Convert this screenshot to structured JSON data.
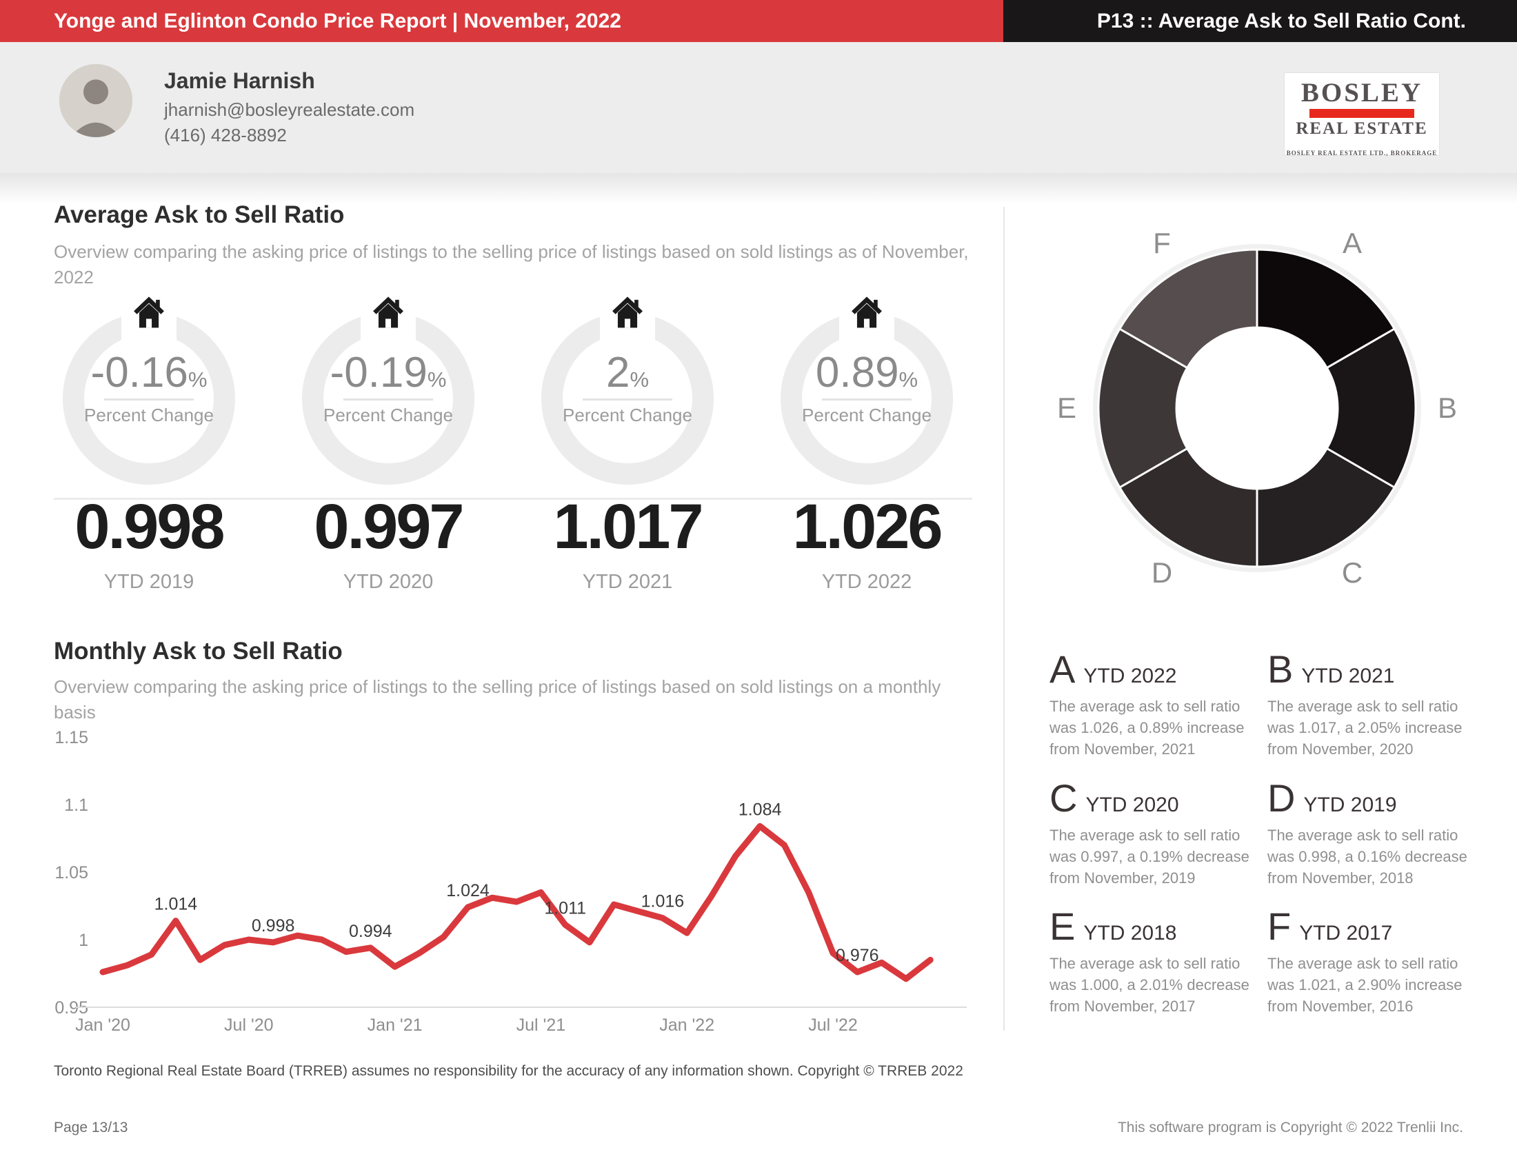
{
  "header": {
    "report_title": "Yonge and Eglinton Condo Price Report | November, 2022",
    "page_title": "P13 :: Average Ask to Sell Ratio Cont.",
    "accent_color": "#d9393d",
    "bar_color": "#191718"
  },
  "agent": {
    "name": "Jamie Harnish",
    "email": "jharnish@bosleyrealestate.com",
    "phone": "(416) 428-8892"
  },
  "brand": {
    "logo_line1": "BOSLEY",
    "logo_line2": "REAL ESTATE",
    "logo_line3": "BOSLEY REAL ESTATE LTD., BROKERAGE",
    "logo_bar_color": "#e8281e"
  },
  "ytd_section": {
    "title": "Average Ask to Sell Ratio",
    "subtitle": "Overview comparing the asking price of listings to the selling price of listings based on sold listings as of November, 2022",
    "percent_suffix": "%",
    "gauges": [
      {
        "percent_change": "-0.16",
        "caption": "Percent Change",
        "value": "0.998",
        "ytd_label": "YTD 2019"
      },
      {
        "percent_change": "-0.19",
        "caption": "Percent Change",
        "value": "0.997",
        "ytd_label": "YTD 2020"
      },
      {
        "percent_change": "2",
        "caption": "Percent Change",
        "value": "1.017",
        "ytd_label": "YTD 2021"
      },
      {
        "percent_change": "0.89",
        "caption": "Percent Change",
        "value": "1.026",
        "ytd_label": "YTD 2022"
      }
    ]
  },
  "monthly_section": {
    "title": "Monthly Ask to Sell Ratio",
    "subtitle": "Overview comparing the asking price of listings to the selling price of listings based on sold listings on a monthly basis"
  },
  "chart_data": {
    "type": "line",
    "title": "Monthly Ask to Sell Ratio",
    "xlabel": "",
    "ylabel": "",
    "ylim": [
      0.95,
      1.15
    ],
    "grid": false,
    "legend": "none",
    "line_color": "#d9393d",
    "axis_color": "#dcdcdc",
    "tick_color": "#8e8e8e",
    "label_color": "#3c3c3c",
    "x": [
      "Jan '20",
      "Feb '20",
      "Mar '20",
      "Apr '20",
      "May '20",
      "Jun '20",
      "Jul '20",
      "Aug '20",
      "Sep '20",
      "Oct '20",
      "Nov '20",
      "Dec '20",
      "Jan '21",
      "Feb '21",
      "Mar '21",
      "Apr '21",
      "May '21",
      "Jun '21",
      "Jul '21",
      "Aug '21",
      "Sep '21",
      "Oct '21",
      "Nov '21",
      "Dec '21",
      "Jan '22",
      "Feb '22",
      "Mar '22",
      "Apr '22",
      "May '22",
      "Jun '22",
      "Jul '22",
      "Aug '22",
      "Sep '22",
      "Oct '22",
      "Nov '22"
    ],
    "values": [
      0.976,
      0.981,
      0.989,
      1.014,
      0.985,
      0.996,
      1.0,
      0.998,
      1.003,
      1.0,
      0.991,
      0.994,
      0.98,
      0.99,
      1.002,
      1.024,
      1.031,
      1.028,
      1.035,
      1.011,
      0.998,
      1.026,
      1.021,
      1.016,
      1.005,
      1.032,
      1.062,
      1.084,
      1.07,
      1.035,
      0.99,
      0.976,
      0.983,
      0.971,
      0.985
    ],
    "labeled_points": [
      {
        "index": 3,
        "x": "Apr '20",
        "value": "1.014"
      },
      {
        "index": 7,
        "x": "Aug '20",
        "value": "0.998"
      },
      {
        "index": 11,
        "x": "Dec '20",
        "value": "0.994"
      },
      {
        "index": 15,
        "x": "Apr '21",
        "value": "1.024"
      },
      {
        "index": 19,
        "x": "Aug '21",
        "value": "1.011"
      },
      {
        "index": 23,
        "x": "Dec '21",
        "value": "1.016"
      },
      {
        "index": 27,
        "x": "Apr '22",
        "value": "1.084"
      },
      {
        "index": 31,
        "x": "Aug '22",
        "value": "0.976"
      }
    ],
    "y_ticks": [
      "1.15",
      "1.1",
      "1.05",
      "1",
      "0.95"
    ],
    "x_ticks": [
      "Jan '20",
      "Jul '20",
      "Jan '21",
      "Jul '21",
      "Jan '22",
      "Jul '22"
    ]
  },
  "donut": {
    "type": "pie",
    "label_color": "#8d8d8d",
    "slices": [
      {
        "label": "A",
        "color": "#0d090b"
      },
      {
        "label": "B",
        "color": "#1a1516"
      },
      {
        "label": "C",
        "color": "#252021"
      },
      {
        "label": "D",
        "color": "#312b2c"
      },
      {
        "label": "E",
        "color": "#3e3738"
      },
      {
        "label": "F",
        "color": "#564d4f"
      }
    ]
  },
  "legend_blocks": [
    {
      "letter": "A",
      "period": "YTD 2022",
      "text": "The average ask to sell ratio was 1.026, a 0.89% increase from November, 2021"
    },
    {
      "letter": "B",
      "period": "YTD 2021",
      "text": "The average ask to sell ratio was 1.017, a 2.05% increase from November, 2020"
    },
    {
      "letter": "C",
      "period": "YTD 2020",
      "text": "The average ask to sell ratio was 0.997, a 0.19% decrease from November, 2019"
    },
    {
      "letter": "D",
      "period": "YTD 2019",
      "text": "The average ask to sell ratio was 0.998, a 0.16% decrease from November, 2018"
    },
    {
      "letter": "E",
      "period": "YTD 2018",
      "text": "The average ask to sell ratio was 1.000, a 2.01% decrease from November, 2017"
    },
    {
      "letter": "F",
      "period": "YTD 2017",
      "text": "The average ask to sell ratio was 1.021, a 2.90% increase from November, 2016"
    }
  ],
  "footer": {
    "disclaimer": "Toronto Regional Real Estate Board (TRREB) assumes no responsibility for the accuracy of any information shown. Copyright © TRREB 2022",
    "page": "Page 13/13",
    "software": "This software program is Copyright © 2022 Trenlii Inc."
  }
}
